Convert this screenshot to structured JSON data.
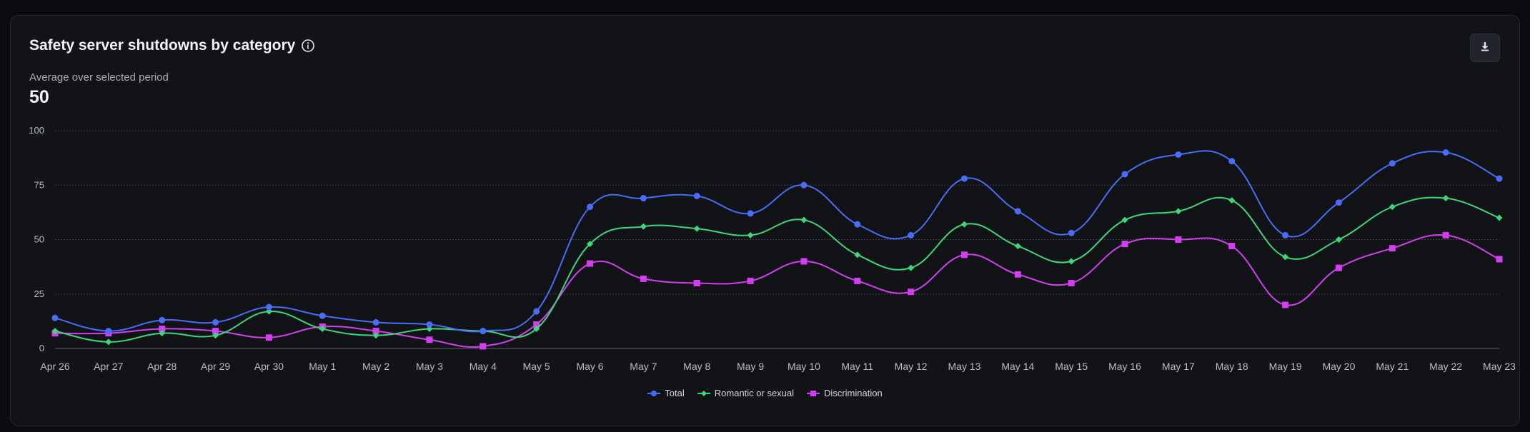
{
  "card": {
    "title": "Safety server shutdowns by category",
    "info_icon": "info-circle-icon",
    "download_icon": "download-icon",
    "subtitle": "Average over selected period",
    "average_value": "50"
  },
  "colors": {
    "Total": "#4a6cf7",
    "Romantic or sexual": "#3fd67a",
    "Discrimination": "#d33ef2",
    "grid": "#3a3d45",
    "axis_text": "#b9bcc4"
  },
  "chart_data": {
    "type": "line",
    "categories": [
      "Apr 26",
      "Apr 27",
      "Apr 28",
      "Apr 29",
      "Apr 30",
      "May 1",
      "May 2",
      "May 3",
      "May 4",
      "May 5",
      "May 6",
      "May 7",
      "May 8",
      "May 9",
      "May 10",
      "May 11",
      "May 12",
      "May 13",
      "May 14",
      "May 15",
      "May 16",
      "May 17",
      "May 18",
      "May 19",
      "May 20",
      "May 21",
      "May 22",
      "May 23"
    ],
    "ylim": [
      0,
      100
    ],
    "yticks": [
      0,
      25,
      50,
      75,
      100
    ],
    "grid": true,
    "legend_position": "bottom-center",
    "series": [
      {
        "name": "Total",
        "marker": "circle",
        "values": [
          14,
          8,
          13,
          12,
          19,
          15,
          12,
          11,
          8,
          17,
          65,
          69,
          70,
          62,
          75,
          57,
          52,
          78,
          63,
          53,
          80,
          89,
          86,
          52,
          67,
          85,
          90,
          78
        ]
      },
      {
        "name": "Romantic or sexual",
        "marker": "diamond",
        "values": [
          8,
          3,
          7,
          6,
          17,
          9,
          6,
          9,
          8,
          9,
          48,
          56,
          55,
          52,
          59,
          43,
          37,
          57,
          47,
          40,
          59,
          63,
          68,
          42,
          50,
          65,
          69,
          60
        ]
      },
      {
        "name": "Discrimination",
        "marker": "square",
        "values": [
          7,
          7,
          9,
          8,
          5,
          10,
          8,
          4,
          1,
          11,
          39,
          32,
          30,
          31,
          40,
          31,
          26,
          43,
          34,
          30,
          48,
          50,
          47,
          20,
          37,
          46,
          52,
          41
        ]
      }
    ]
  }
}
